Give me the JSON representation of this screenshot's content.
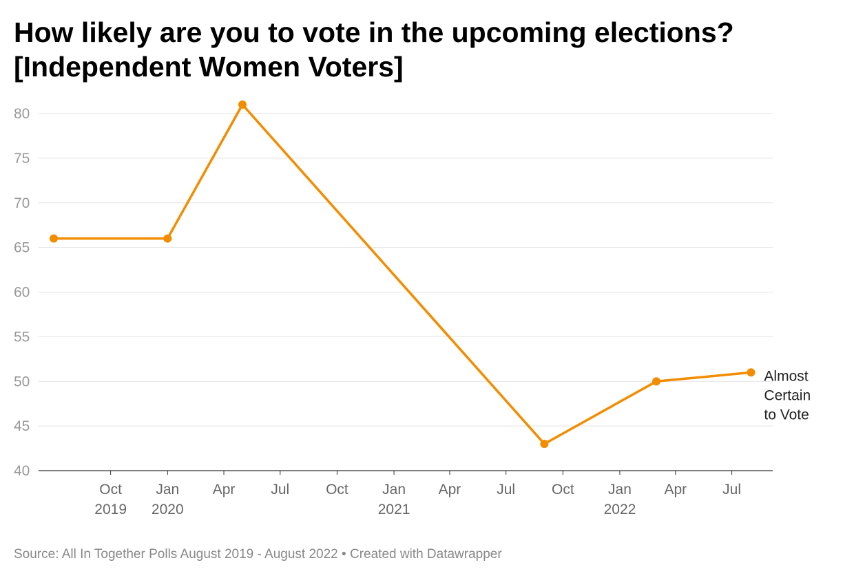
{
  "title_line1": "How likely are you to vote in the upcoming elections?",
  "title_line2": "[Independent Women Voters]",
  "footer": {
    "source": "Source: All In Together Polls August 2019 - August 2022",
    "separator": " • ",
    "credit": "Created with Datawrapper"
  },
  "colors": {
    "line": "#f28c00",
    "grid": "#e2e2e2",
    "axis": "#333333",
    "tick_text": "#999999",
    "x_tick_text": "#666666",
    "label_text": "#222222"
  },
  "chart_data": {
    "type": "line",
    "xlim": [
      "2019-07-01",
      "2022-08-15"
    ],
    "ylim": [
      40,
      80
    ],
    "y_ticks": [
      40,
      45,
      50,
      55,
      60,
      65,
      70,
      75,
      80
    ],
    "x_ticks": [
      {
        "date": "2019-10-01",
        "label": [
          "Oct",
          "2019"
        ]
      },
      {
        "date": "2020-01-01",
        "label": [
          "Jan",
          "2020"
        ]
      },
      {
        "date": "2020-04-01",
        "label": [
          "Apr"
        ]
      },
      {
        "date": "2020-07-01",
        "label": [
          "Jul"
        ]
      },
      {
        "date": "2020-10-01",
        "label": [
          "Oct"
        ]
      },
      {
        "date": "2021-01-01",
        "label": [
          "Jan",
          "2021"
        ]
      },
      {
        "date": "2021-04-01",
        "label": [
          "Apr"
        ]
      },
      {
        "date": "2021-07-01",
        "label": [
          "Jul"
        ]
      },
      {
        "date": "2021-10-01",
        "label": [
          "Oct"
        ]
      },
      {
        "date": "2022-01-01",
        "label": [
          "Jan",
          "2022"
        ]
      },
      {
        "date": "2022-04-01",
        "label": [
          "Apr"
        ]
      },
      {
        "date": "2022-07-01",
        "label": [
          "Jul"
        ]
      }
    ],
    "grid": true,
    "series": [
      {
        "name": [
          "Almost",
          "Certain",
          "to Vote"
        ],
        "points": [
          {
            "x": "2019-07-01",
            "y": 66
          },
          {
            "x": "2020-01-01",
            "y": 66
          },
          {
            "x": "2020-05-01",
            "y": 81
          },
          {
            "x": "2021-09-01",
            "y": 43
          },
          {
            "x": "2022-03-01",
            "y": 50
          },
          {
            "x": "2022-08-01",
            "y": 51
          }
        ]
      }
    ]
  }
}
